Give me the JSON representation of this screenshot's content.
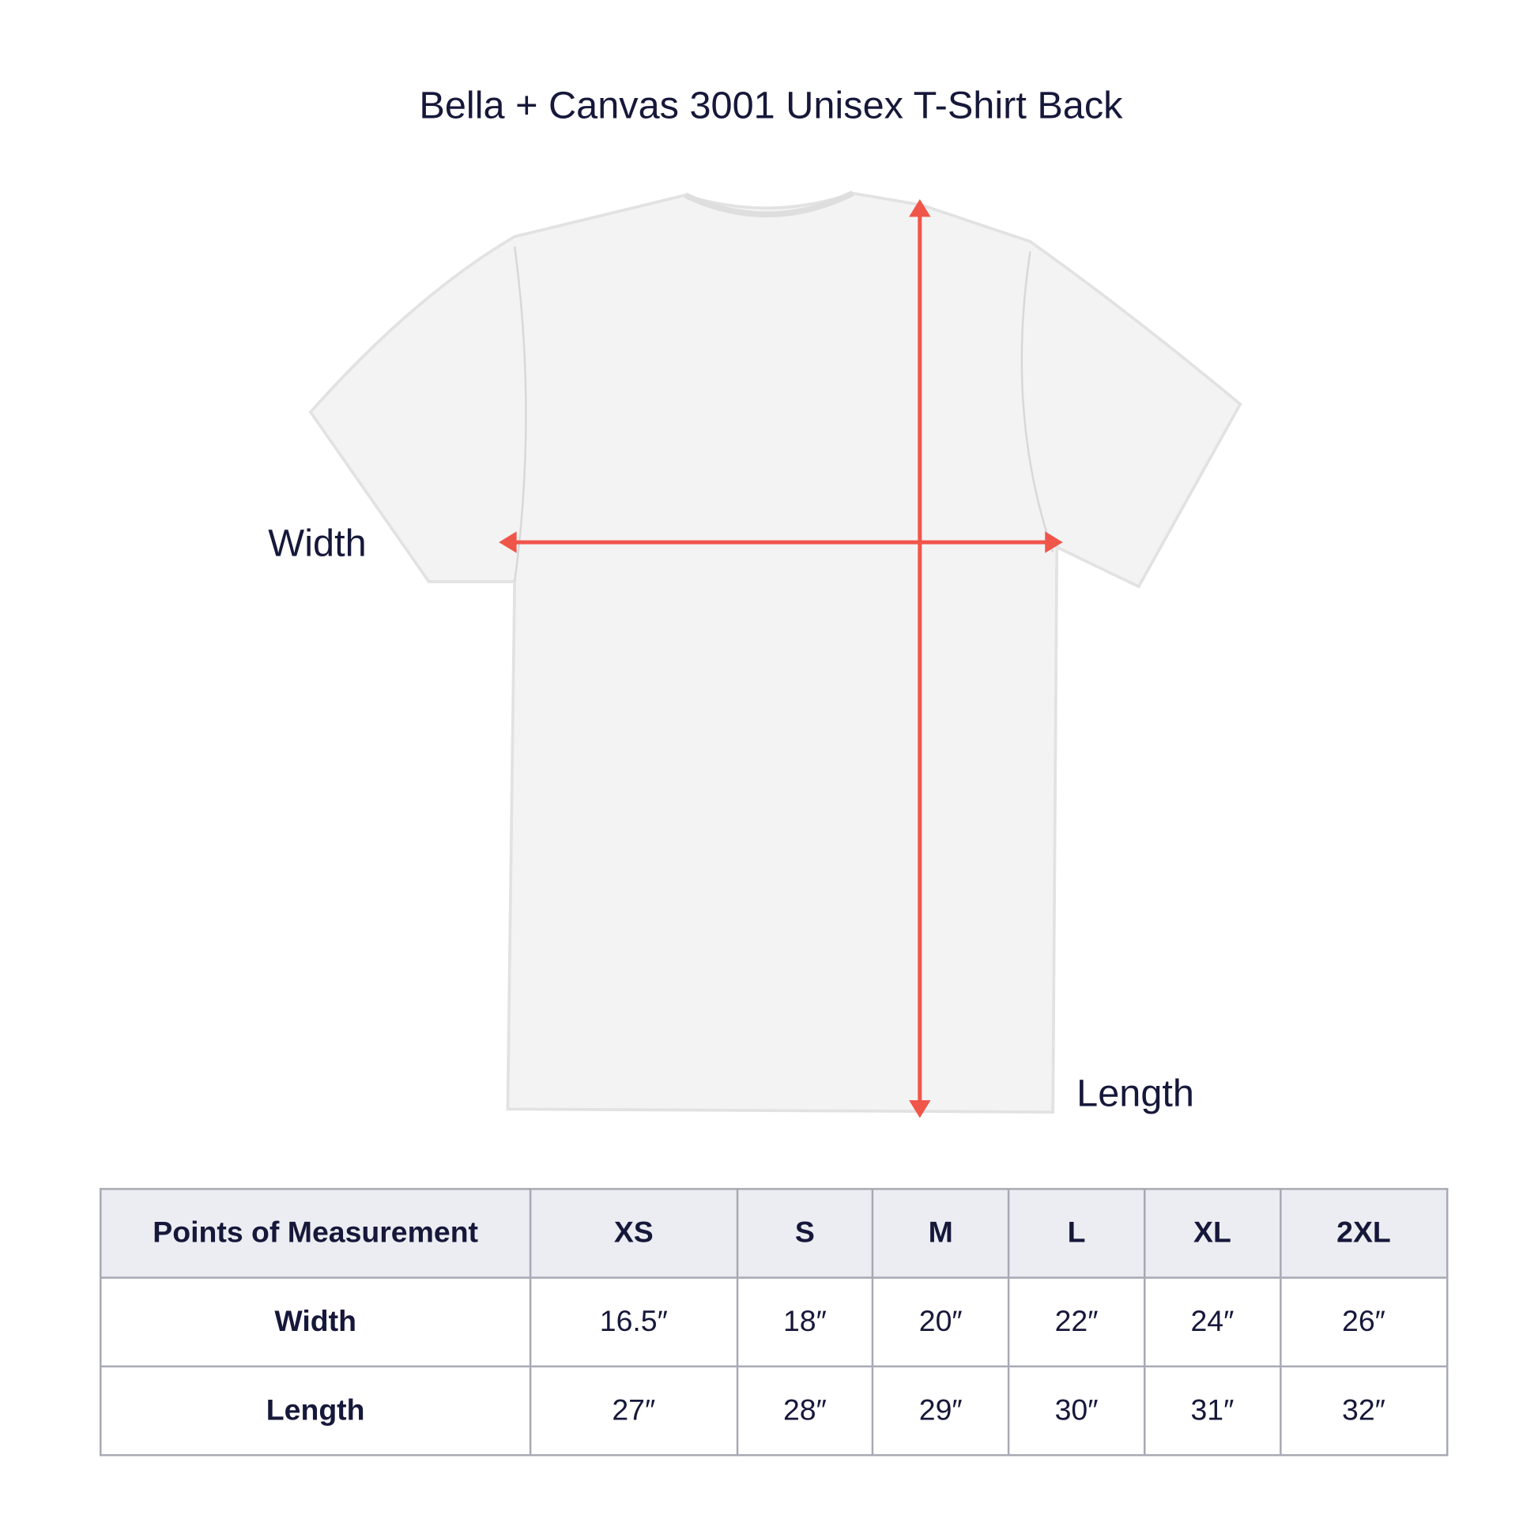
{
  "title": "Bella + Canvas 3001 Unisex T-Shirt Back",
  "labels": {
    "width": "Width",
    "length": "Length"
  },
  "colors": {
    "arrow": "#f0554a",
    "header_bg": "#ebedf2",
    "text": "#16183a"
  },
  "table": {
    "headers": [
      "Points of Measurement",
      "XS",
      "S",
      "M",
      "L",
      "XL",
      "2XL"
    ],
    "rows": [
      {
        "label": "Width",
        "values": [
          "16.5″",
          "18″",
          "20″",
          "22″",
          "24″",
          "26″"
        ]
      },
      {
        "label": "Length",
        "values": [
          "27″",
          "28″",
          "29″",
          "30″",
          "31″",
          "32″"
        ]
      }
    ]
  }
}
